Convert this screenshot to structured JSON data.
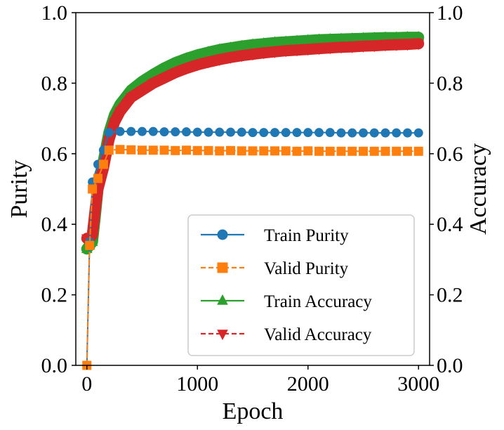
{
  "chart_data": {
    "type": "line",
    "title": "",
    "xlabel": "Epoch",
    "ylabel_left": "Purity",
    "ylabel_right": "Accuracy",
    "xlim": [
      -100,
      3100
    ],
    "ylim_left": [
      0.0,
      1.0
    ],
    "ylim_right": [
      0.0,
      1.0
    ],
    "x_ticks": [
      0,
      1000,
      2000,
      3000
    ],
    "x_tick_labels": [
      "0",
      "1000",
      "2000",
      "3000"
    ],
    "y_ticks_left": [
      0.0,
      0.2,
      0.4,
      0.6,
      0.8,
      1.0
    ],
    "y_tick_labels_left": [
      "0.0",
      "0.2",
      "0.4",
      "0.6",
      "0.8",
      "1.0"
    ],
    "y_ticks_right": [
      0.0,
      0.2,
      0.4,
      0.6,
      0.8,
      1.0
    ],
    "y_tick_labels_right": [
      "0.0",
      "0.2",
      "0.4",
      "0.6",
      "0.8",
      "1.0"
    ],
    "grid": false,
    "legend_position": "lower-right",
    "series": [
      {
        "name": "Train Purity",
        "axis": "left",
        "color": "#1f77b4",
        "linestyle": "solid",
        "marker": "circle",
        "x": [
          0,
          25,
          50,
          100,
          150,
          200,
          300,
          400,
          500,
          600,
          700,
          800,
          900,
          1000,
          1100,
          1200,
          1300,
          1400,
          1500,
          1600,
          1700,
          1800,
          1900,
          2000,
          2100,
          2200,
          2300,
          2400,
          2500,
          2600,
          2700,
          2800,
          2900,
          3000
        ],
        "values": [
          0.0,
          0.35,
          0.52,
          0.57,
          0.61,
          0.66,
          0.663,
          0.663,
          0.663,
          0.663,
          0.662,
          0.662,
          0.662,
          0.661,
          0.661,
          0.661,
          0.661,
          0.661,
          0.66,
          0.66,
          0.66,
          0.66,
          0.66,
          0.66,
          0.66,
          0.66,
          0.659,
          0.659,
          0.659,
          0.659,
          0.659,
          0.659,
          0.659,
          0.659
        ]
      },
      {
        "name": "Valid Purity",
        "axis": "left",
        "color": "#ff7f0e",
        "linestyle": "dashed",
        "marker": "square",
        "x": [
          0,
          25,
          50,
          100,
          150,
          200,
          300,
          400,
          500,
          600,
          700,
          800,
          900,
          1000,
          1100,
          1200,
          1300,
          1400,
          1500,
          1600,
          1700,
          1800,
          1900,
          2000,
          2100,
          2200,
          2300,
          2400,
          2500,
          2600,
          2700,
          2800,
          2900,
          3000
        ],
        "values": [
          0.0,
          0.34,
          0.5,
          0.53,
          0.57,
          0.61,
          0.612,
          0.611,
          0.61,
          0.61,
          0.61,
          0.609,
          0.61,
          0.609,
          0.609,
          0.608,
          0.609,
          0.608,
          0.608,
          0.608,
          0.608,
          0.608,
          0.607,
          0.608,
          0.607,
          0.607,
          0.607,
          0.607,
          0.607,
          0.607,
          0.607,
          0.607,
          0.607,
          0.607
        ]
      },
      {
        "name": "Train Accuracy",
        "axis": "right",
        "color": "#2ca02c",
        "linestyle": "solid",
        "marker": "triangle-up",
        "x": [
          0,
          25,
          50,
          75,
          100,
          150,
          200,
          250,
          300,
          400,
          500,
          600,
          700,
          800,
          900,
          1000,
          1100,
          1200,
          1300,
          1400,
          1500,
          1600,
          1700,
          1800,
          1900,
          2000,
          2100,
          2200,
          2300,
          2400,
          2500,
          2600,
          2700,
          2800,
          2900,
          3000
        ],
        "values": [
          0.33,
          0.34,
          0.35,
          0.42,
          0.5,
          0.58,
          0.66,
          0.71,
          0.74,
          0.78,
          0.805,
          0.825,
          0.843,
          0.858,
          0.87,
          0.88,
          0.888,
          0.895,
          0.9,
          0.905,
          0.909,
          0.912,
          0.915,
          0.917,
          0.919,
          0.921,
          0.923,
          0.924,
          0.925,
          0.926,
          0.927,
          0.928,
          0.929,
          0.929,
          0.93,
          0.93
        ]
      },
      {
        "name": "Valid Accuracy",
        "axis": "right",
        "color": "#d62728",
        "linestyle": "dashed",
        "marker": "triangle-down",
        "x": [
          0,
          25,
          50,
          75,
          100,
          150,
          200,
          250,
          300,
          400,
          500,
          600,
          700,
          800,
          900,
          1000,
          1100,
          1200,
          1300,
          1400,
          1500,
          1600,
          1700,
          1800,
          1900,
          2000,
          2100,
          2200,
          2300,
          2400,
          2500,
          2600,
          2700,
          2800,
          2900,
          3000
        ],
        "values": [
          0.36,
          0.36,
          0.37,
          0.44,
          0.5,
          0.56,
          0.64,
          0.69,
          0.72,
          0.76,
          0.78,
          0.8,
          0.815,
          0.83,
          0.842,
          0.852,
          0.86,
          0.867,
          0.873,
          0.878,
          0.882,
          0.886,
          0.889,
          0.892,
          0.894,
          0.896,
          0.898,
          0.9,
          0.902,
          0.903,
          0.905,
          0.906,
          0.908,
          0.909,
          0.91,
          0.912
        ]
      }
    ]
  }
}
